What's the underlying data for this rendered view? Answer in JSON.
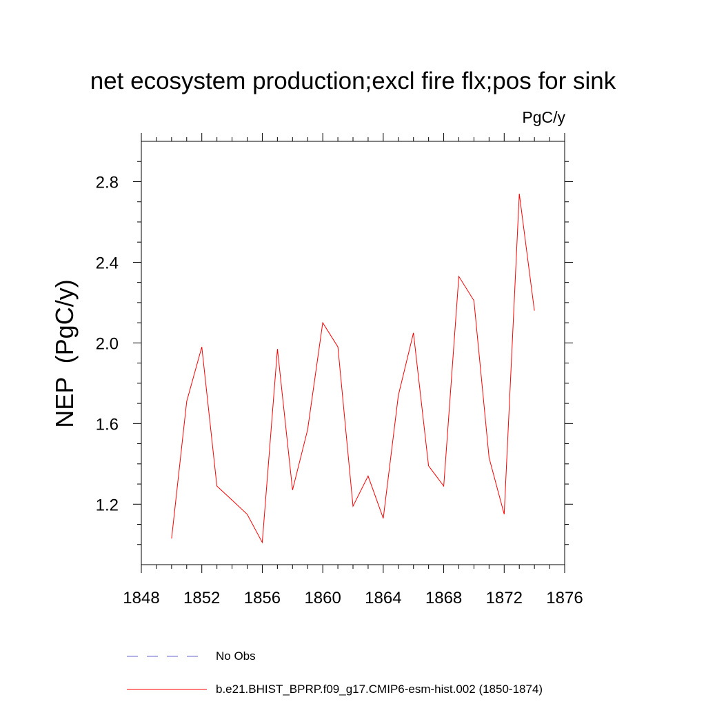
{
  "chart_data": {
    "type": "line",
    "title": "net ecosystem production;excl fire flx;pos for sink",
    "units_label": "PgC/y",
    "ylabel": "NEP  (PgC/y)",
    "xlabel": "",
    "xlim": [
      1848,
      1876
    ],
    "ylim": [
      0.9,
      3.0
    ],
    "xticks": [
      1848,
      1852,
      1856,
      1860,
      1864,
      1868,
      1872,
      1876
    ],
    "yticks": [
      1.2,
      1.6,
      2.0,
      2.4,
      2.8
    ],
    "ytick_labels": [
      "1.2",
      "1.6",
      "2.0",
      "2.4",
      "2.8"
    ],
    "grid": false,
    "legend_position": "bottom",
    "series": [
      {
        "name": "b.e21.BHIST_BPRP.f09_g17.CMIP6-esm-hist.002 (1850-1874)",
        "color": "#ff0000",
        "style": "solid",
        "x": [
          1850,
          1851,
          1852,
          1853,
          1854,
          1855,
          1856,
          1857,
          1858,
          1859,
          1860,
          1861,
          1862,
          1863,
          1864,
          1865,
          1866,
          1867,
          1868,
          1869,
          1870,
          1871,
          1872,
          1873,
          1874
        ],
        "y": [
          1.03,
          1.71,
          1.98,
          1.29,
          1.22,
          1.15,
          1.01,
          1.97,
          1.27,
          1.57,
          2.1,
          1.98,
          1.19,
          1.34,
          1.13,
          1.74,
          2.05,
          1.39,
          1.29,
          2.33,
          2.21,
          1.43,
          1.15,
          2.74,
          2.16
        ]
      },
      {
        "name": "No Obs",
        "color": "#6666cc",
        "style": "dashed",
        "x": [],
        "y": []
      }
    ]
  }
}
